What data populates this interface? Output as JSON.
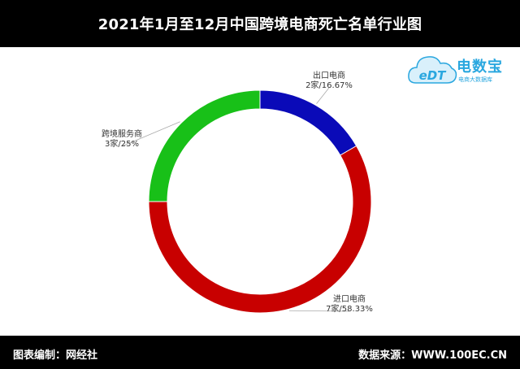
{
  "header": {
    "title": "2021年1月至12月中国跨境电商死亡名单行业图"
  },
  "logo": {
    "brand": "电数宝",
    "subtitle": "电商大数据库",
    "mark": "eDT",
    "accent": "#2aa7df"
  },
  "footer": {
    "left": "图表编制：网经社",
    "right": "数据来源：WWW.100EC.CN"
  },
  "chart_data": {
    "type": "pie",
    "donut": true,
    "start_angle_deg": 0,
    "direction": "clockwise_from_top",
    "slices": [
      {
        "name": "出口电商",
        "value": 2,
        "percent": 16.67,
        "label": "2家/16.67%",
        "color": "#0a0ab8"
      },
      {
        "name": "进口电商",
        "value": 7,
        "percent": 58.33,
        "label": "7家/58.33%",
        "color": "#c80000"
      },
      {
        "name": "跨境服务商",
        "value": 3,
        "percent": 25,
        "label": "3家/25%",
        "color": "#18c018"
      }
    ]
  }
}
